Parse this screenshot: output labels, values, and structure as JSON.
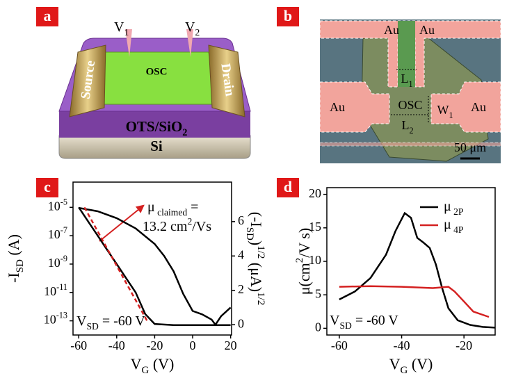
{
  "panels": [
    "a",
    "b",
    "c",
    "d"
  ],
  "device": {
    "probes": [
      [
        {
          "text": "V"
        },
        {
          "text": "1",
          "shift": "sub"
        }
      ],
      [
        {
          "text": "V"
        },
        {
          "text": "2",
          "shift": "sub"
        }
      ]
    ],
    "source": "Source",
    "drain": "Drain",
    "osc": "OSC",
    "dielectric": [
      {
        "text": "OTS/SiO"
      },
      {
        "text": "2",
        "shift": "sub"
      }
    ],
    "substrate": "Si"
  },
  "micrograph": {
    "electrodes": [
      "Au",
      "Au",
      "Au",
      "Au"
    ],
    "channel": "OSC",
    "dims": [
      [
        {
          "text": "L"
        },
        {
          "text": "1",
          "shift": "sub"
        }
      ],
      [
        {
          "text": "W"
        },
        {
          "text": "1",
          "shift": "sub"
        }
      ],
      [
        {
          "text": "L"
        },
        {
          "text": "2",
          "shift": "sub"
        }
      ]
    ],
    "scale_bar": "50 μm"
  },
  "chart_data": [
    {
      "type": "line",
      "ylog": true,
      "xlabel": [
        {
          "text": "V"
        },
        {
          "text": "G",
          "shift": "sub"
        },
        {
          "text": " (V)"
        }
      ],
      "ylabel": [
        {
          "text": "-I"
        },
        {
          "text": "SD",
          "shift": "sub"
        },
        {
          "text": " (A)"
        }
      ],
      "y2label": [
        {
          "text": "(-I"
        },
        {
          "text": "SD",
          "shift": "sub"
        },
        {
          "text": ")"
        },
        {
          "text": "1/2",
          "shift": "super"
        },
        {
          "text": " (μA)"
        },
        {
          "text": "1/2",
          "shift": "super"
        }
      ],
      "xlim": [
        -63,
        20.5
      ],
      "xticks": [
        -60,
        -40,
        -20,
        0,
        20
      ],
      "ylim": [
        1e-14,
        0.0006
      ],
      "yticks": [
        {
          "value": 1e-05,
          "label": "10",
          "exponent": "-5"
        },
        {
          "value": 1e-07,
          "label": "10",
          "exponent": "-7"
        },
        {
          "value": 1e-09,
          "label": "10",
          "exponent": "-9"
        },
        {
          "value": 1e-11,
          "label": "10",
          "exponent": "-11"
        },
        {
          "value": 1e-13,
          "label": "10",
          "exponent": "-13"
        }
      ],
      "y2lim": [
        -0.6,
        8.3
      ],
      "y2ticks": [
        0,
        2,
        4,
        6
      ],
      "series": [
        {
          "color": "#000000",
          "x": [
            -60,
            -55,
            -50,
            -45,
            -40,
            -35,
            -30,
            -25,
            -20,
            -10,
            0,
            10,
            20
          ],
          "values": [
            1e-05,
            1e-06,
            1e-07,
            1e-08,
            1e-09,
            1e-10,
            1e-11,
            3e-13,
            6e-14,
            5e-14,
            5e-14,
            5e-14,
            5e-14
          ]
        },
        {
          "color": "#000000",
          "axis": "y2",
          "x": [
            -60,
            -50,
            -40,
            -30,
            -20,
            -15,
            -10,
            -5,
            0,
            5,
            10,
            12,
            15,
            20
          ],
          "values": [
            6.8,
            6.6,
            6.2,
            5.6,
            4.7,
            4.0,
            3.1,
            1.8,
            0.8,
            0.6,
            0.3,
            0.0,
            0.5,
            1.0
          ]
        },
        {
          "color": "#d42020",
          "dashed": true,
          "x": [
            -57,
            -24
          ],
          "values": [
            1e-05,
            1e-13
          ]
        }
      ],
      "annotations": [
        [
          {
            "text": "μ"
          },
          {
            "text": " claimed",
            "shift": "sub"
          },
          {
            "text": " ="
          }
        ],
        [
          {
            "text": "13.2 cm"
          },
          {
            "text": "2",
            "shift": "super"
          },
          {
            "text": "/Vs"
          }
        ],
        [
          {
            "text": "V"
          },
          {
            "text": "SD",
            "shift": "sub"
          },
          {
            "text": " = -60 V"
          }
        ]
      ]
    },
    {
      "type": "line",
      "xlabel": [
        {
          "text": "V"
        },
        {
          "text": "G",
          "shift": "sub"
        },
        {
          "text": " (V)"
        }
      ],
      "ylabel": [
        {
          "text": "μ(cm"
        },
        {
          "text": "2",
          "shift": "super"
        },
        {
          "text": "/V s)"
        }
      ],
      "xlim": [
        -64,
        -10
      ],
      "xticks": [
        -60,
        -40,
        -20
      ],
      "ylim": [
        -1,
        21
      ],
      "yticks": [
        0,
        5,
        10,
        15,
        20
      ],
      "legend": "upper right",
      "series": [
        {
          "name": [
            {
              "text": "μ"
            },
            {
              "text": " 2P",
              "shift": "sub"
            }
          ],
          "color": "#000000",
          "x": [
            -60,
            -55,
            -50,
            -45,
            -42,
            -39,
            -37,
            -35,
            -33,
            -31,
            -29,
            -27,
            -25,
            -22,
            -18,
            -14,
            -10
          ],
          "values": [
            4.3,
            5.5,
            7.5,
            11,
            14.5,
            17.2,
            16.5,
            13.5,
            12.8,
            12,
            9.5,
            6,
            3,
            1.2,
            0.5,
            0.2,
            0.1
          ]
        },
        {
          "name": [
            {
              "text": "μ"
            },
            {
              "text": " 4P",
              "shift": "sub"
            }
          ],
          "color": "#d42020",
          "x": [
            -60,
            -50,
            -40,
            -30,
            -25,
            -23,
            -20,
            -17,
            -12
          ],
          "values": [
            6.2,
            6.3,
            6.2,
            6.0,
            6.2,
            5.5,
            4,
            2.5,
            1.7
          ]
        }
      ],
      "annotations": [
        [
          {
            "text": "V"
          },
          {
            "text": "SD",
            "shift": "sub"
          },
          {
            "text": " = -60 V"
          }
        ]
      ]
    }
  ]
}
